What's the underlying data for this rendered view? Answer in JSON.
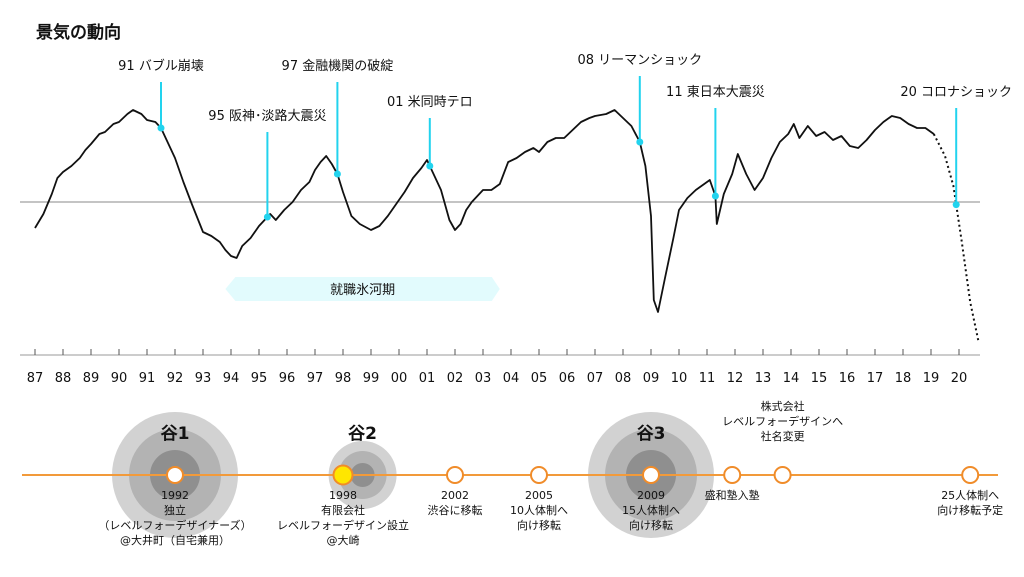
{
  "chart_data": {
    "type": "line",
    "title": "景気の動向",
    "xlabel": "",
    "ylabel": "",
    "grid": false,
    "x_tick_labels": [
      "87",
      "88",
      "89",
      "90",
      "91",
      "92",
      "93",
      "94",
      "95",
      "96",
      "97",
      "98",
      "99",
      "00",
      "01",
      "02",
      "03",
      "04",
      "05",
      "06",
      "07",
      "08",
      "09",
      "10",
      "11",
      "12",
      "13",
      "14",
      "15",
      "16",
      "17",
      "18",
      "19",
      "20"
    ],
    "series": [
      {
        "values": [
          [
            1987.0,
            -1.3
          ],
          [
            1987.3,
            -0.6
          ],
          [
            1987.6,
            0.4
          ],
          [
            1987.8,
            1.2
          ],
          [
            1988.0,
            1.5
          ],
          [
            1988.3,
            1.8
          ],
          [
            1988.6,
            2.2
          ],
          [
            1988.8,
            2.6
          ],
          [
            1989.0,
            2.9
          ],
          [
            1989.3,
            3.4
          ],
          [
            1989.5,
            3.5
          ],
          [
            1989.8,
            3.9
          ],
          [
            1990.0,
            4.0
          ],
          [
            1990.3,
            4.4
          ],
          [
            1990.5,
            4.6
          ],
          [
            1990.8,
            4.4
          ],
          [
            1991.0,
            4.1
          ],
          [
            1991.3,
            4.0
          ],
          [
            1991.5,
            3.7
          ],
          [
            1991.8,
            2.8
          ],
          [
            1992.0,
            2.2
          ],
          [
            1992.3,
            1.0
          ],
          [
            1992.6,
            -0.1
          ],
          [
            1992.8,
            -0.8
          ],
          [
            1993.0,
            -1.5
          ],
          [
            1993.3,
            -1.7
          ],
          [
            1993.6,
            -2.0
          ],
          [
            1993.8,
            -2.4
          ],
          [
            1994.0,
            -2.7
          ],
          [
            1994.2,
            -2.8
          ],
          [
            1994.4,
            -2.2
          ],
          [
            1994.7,
            -1.8
          ],
          [
            1995.0,
            -1.2
          ],
          [
            1995.2,
            -0.9
          ],
          [
            1995.4,
            -0.6
          ],
          [
            1995.6,
            -0.9
          ],
          [
            1995.9,
            -0.4
          ],
          [
            1996.2,
            0.0
          ],
          [
            1996.5,
            0.6
          ],
          [
            1996.8,
            1.0
          ],
          [
            1997.0,
            1.6
          ],
          [
            1997.2,
            2.0
          ],
          [
            1997.4,
            2.3
          ],
          [
            1997.6,
            1.9
          ],
          [
            1997.8,
            1.4
          ],
          [
            1998.0,
            0.5
          ],
          [
            1998.3,
            -0.7
          ],
          [
            1998.6,
            -1.1
          ],
          [
            1999.0,
            -1.4
          ],
          [
            1999.3,
            -1.2
          ],
          [
            1999.6,
            -0.7
          ],
          [
            1999.9,
            -0.1
          ],
          [
            2000.2,
            0.5
          ],
          [
            2000.5,
            1.2
          ],
          [
            2000.8,
            1.7
          ],
          [
            2001.0,
            2.1
          ],
          [
            2001.2,
            1.5
          ],
          [
            2001.5,
            0.6
          ],
          [
            2001.8,
            -0.9
          ],
          [
            2002.0,
            -1.4
          ],
          [
            2002.2,
            -1.1
          ],
          [
            2002.4,
            -0.4
          ],
          [
            2002.6,
            0.0
          ],
          [
            2002.8,
            0.3
          ],
          [
            2003.0,
            0.6
          ],
          [
            2003.3,
            0.6
          ],
          [
            2003.6,
            0.9
          ],
          [
            2003.9,
            2.0
          ],
          [
            2004.2,
            2.2
          ],
          [
            2004.5,
            2.5
          ],
          [
            2004.8,
            2.7
          ],
          [
            2005.0,
            2.5
          ],
          [
            2005.3,
            3.0
          ],
          [
            2005.6,
            3.2
          ],
          [
            2005.9,
            3.2
          ],
          [
            2006.2,
            3.6
          ],
          [
            2006.5,
            4.0
          ],
          [
            2006.8,
            4.2
          ],
          [
            2007.0,
            4.3
          ],
          [
            2007.4,
            4.4
          ],
          [
            2007.7,
            4.6
          ],
          [
            2008.0,
            4.2
          ],
          [
            2008.3,
            3.8
          ],
          [
            2008.6,
            3.0
          ],
          [
            2008.8,
            1.8
          ],
          [
            2009.0,
            -0.7
          ],
          [
            2009.1,
            -4.9
          ],
          [
            2009.25,
            -5.5
          ],
          [
            2009.5,
            -3.8
          ],
          [
            2009.8,
            -1.8
          ],
          [
            2010.0,
            -0.4
          ],
          [
            2010.3,
            0.2
          ],
          [
            2010.6,
            0.6
          ],
          [
            2010.9,
            0.9
          ],
          [
            2011.1,
            1.1
          ],
          [
            2011.3,
            0.3
          ],
          [
            2011.35,
            -1.1
          ],
          [
            2011.6,
            0.4
          ],
          [
            2011.9,
            1.4
          ],
          [
            2012.1,
            2.4
          ],
          [
            2012.4,
            1.4
          ],
          [
            2012.7,
            0.6
          ],
          [
            2013.0,
            1.2
          ],
          [
            2013.3,
            2.2
          ],
          [
            2013.6,
            3.0
          ],
          [
            2013.9,
            3.4
          ],
          [
            2014.1,
            3.9
          ],
          [
            2014.3,
            3.2
          ],
          [
            2014.6,
            3.8
          ],
          [
            2014.9,
            3.3
          ],
          [
            2015.2,
            3.5
          ],
          [
            2015.5,
            3.1
          ],
          [
            2015.8,
            3.3
          ],
          [
            2016.1,
            2.8
          ],
          [
            2016.4,
            2.7
          ],
          [
            2016.7,
            3.1
          ],
          [
            2017.0,
            3.6
          ],
          [
            2017.3,
            4.0
          ],
          [
            2017.6,
            4.3
          ],
          [
            2017.9,
            4.2
          ],
          [
            2018.2,
            3.9
          ],
          [
            2018.5,
            3.7
          ],
          [
            2018.8,
            3.7
          ],
          [
            2019.1,
            3.4
          ]
        ],
        "projection": [
          [
            2019.1,
            3.4
          ],
          [
            2019.5,
            2.3
          ],
          [
            2019.8,
            0.8
          ],
          [
            2020.1,
            -2.0
          ],
          [
            2020.4,
            -5.0
          ],
          [
            2020.7,
            -7.0
          ]
        ]
      }
    ],
    "annotations": [
      {
        "label": "91 バブル崩壊",
        "x": 1991.5
      },
      {
        "label": "95 阪神･淡路大震災",
        "x": 1995.3
      },
      {
        "label": "97 金融機関の破綻",
        "x": 1997.8
      },
      {
        "label": "01 米同時テロ",
        "x": 2001.1
      },
      {
        "label": "08 リーマンショック",
        "x": 2008.6
      },
      {
        "label": "11 東日本大震災",
        "x": 2011.3
      },
      {
        "label": "20 コロナショック",
        "x": 2019.9
      }
    ],
    "band": {
      "label": "就職氷河期",
      "start": 1993.8,
      "end": 2003.6
    },
    "timeline": {
      "valleys": [
        {
          "label": "谷1",
          "x": 1992.0
        },
        {
          "label": "谷2",
          "x": 1998.7
        },
        {
          "label": "谷3",
          "x": 2009.0
        }
      ],
      "events": [
        {
          "x": 1992.0,
          "lines": [
            "1992",
            "独立",
            "（レベルフォーデザイナーズ）",
            "@大井町（自宅兼用）"
          ],
          "highlight": false
        },
        {
          "x": 1998.0,
          "lines": [
            "1998",
            "有限会社",
            "レベルフォーデザイン設立",
            "@大崎"
          ],
          "highlight": true
        },
        {
          "x": 2002.0,
          "lines": [
            "2002",
            "渋谷に移転"
          ],
          "highlight": false
        },
        {
          "x": 2005.0,
          "lines": [
            "2005",
            "10人体制へ",
            "向け移転"
          ],
          "highlight": false
        },
        {
          "x": 2009.0,
          "lines": [
            "2009",
            "15人体制へ",
            "向け移転"
          ],
          "highlight": false
        },
        {
          "x": 2011.9,
          "lines": [
            "盛和塾入塾"
          ],
          "highlight": false
        },
        {
          "x": 2013.7,
          "lines": [],
          "above": [
            "株式会社",
            "レベルフォーデザインへ",
            "社名変更"
          ],
          "highlight": false
        },
        {
          "x": 2020.4,
          "lines": [
            "25人体制へ",
            "向け移転予定"
          ],
          "highlight": false
        }
      ]
    }
  }
}
